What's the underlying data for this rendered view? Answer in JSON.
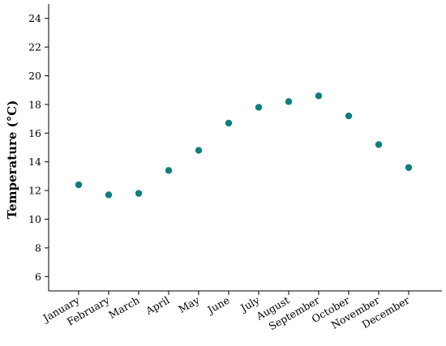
{
  "chart_data": {
    "type": "scatter",
    "title": "",
    "xlabel": "",
    "ylabel": "Temperature (°C)",
    "categories": [
      "January",
      "February",
      "March",
      "April",
      "May",
      "June",
      "July",
      "August",
      "September",
      "October",
      "November",
      "December"
    ],
    "values": [
      12.4,
      11.7,
      11.8,
      13.4,
      14.8,
      16.7,
      17.8,
      18.2,
      18.6,
      17.2,
      15.2,
      13.6
    ],
    "ylim": [
      5,
      25
    ],
    "yticks": [
      6,
      8,
      10,
      12,
      14,
      16,
      18,
      20,
      22,
      24
    ],
    "grid": false,
    "legend": "none",
    "marker_color": "#0e7f7d"
  }
}
